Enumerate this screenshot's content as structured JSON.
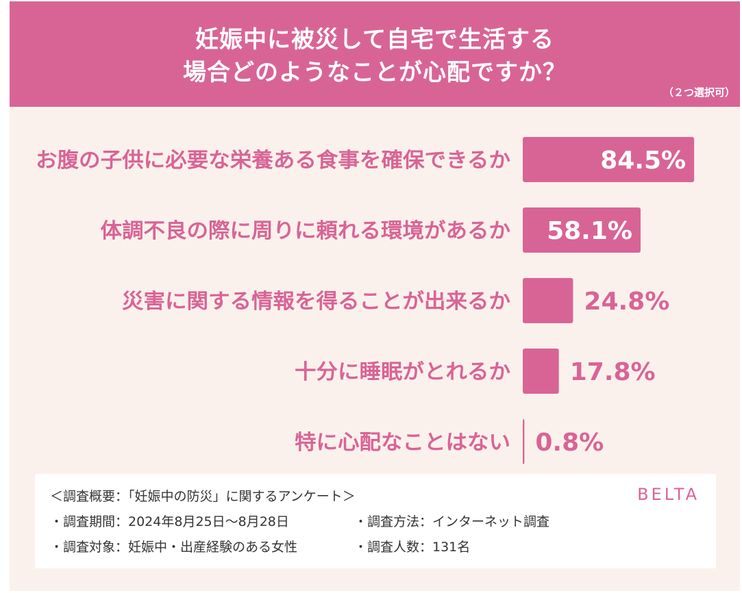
{
  "header": {
    "title_line1": "妊娠中に被災して自宅で生活する",
    "title_line2": "場合どのようなことが心配ですか？",
    "note": "（２つ選択可）"
  },
  "colors": {
    "accent": "#d86496",
    "bar": "#d86496",
    "background": "#fbf1ec",
    "value_inside": "#ffffff",
    "value_outside": "#d86496"
  },
  "chart_data": {
    "type": "bar",
    "orientation": "horizontal",
    "categories": [
      "お腹の子供に必要な栄養ある食事を確保できるか",
      "体調不良の際に周りに頼れる環境があるか",
      "災害に関する情報を得ることが出来るか",
      "十分に睡眠がとれるか",
      "特に心配なことはない"
    ],
    "values": [
      84.5,
      58.1,
      24.8,
      17.8,
      0.8
    ],
    "value_labels": [
      "84.5%",
      "58.1%",
      "24.8%",
      "17.8%",
      "0.8%"
    ],
    "unit": "%",
    "xlim": [
      0,
      100
    ],
    "grid": false,
    "legend": "none"
  },
  "survey": {
    "line1": "＜調査概要：「妊娠中の防災」に関するアンケート＞",
    "period": "・調査期間：2024年8月25日～8月28日",
    "method": "・調査方法：インターネット調査",
    "target": "・調査対象：妊娠中・出産経験のある女性",
    "count": "・調査人数：131名",
    "logo": "BELTA"
  }
}
